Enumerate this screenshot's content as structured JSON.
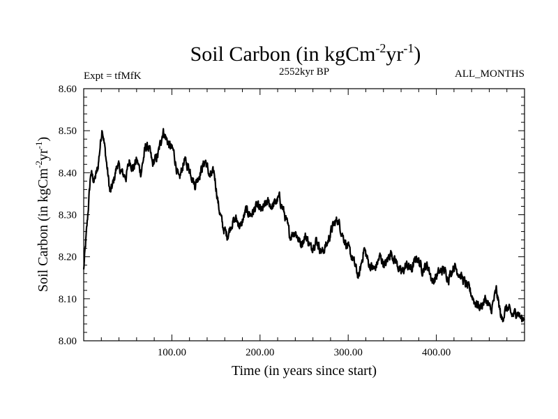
{
  "chart_data": {
    "type": "line",
    "title": "Soil Carbon (in kgCm",
    "title_exp1": "-2",
    "title_mid": "yr",
    "title_exp2": "-1",
    "title_end": ")",
    "subtitle_left": "Expt = tfMfK",
    "subtitle_center": "2552kyr BP",
    "subtitle_right": "ALL_MONTHS",
    "xlabel": "Time (in years since start)",
    "ylabel_parts": [
      "Soil Carbon (in kgCm",
      "-2",
      "yr",
      "-1",
      ")"
    ],
    "xlim": [
      0,
      500
    ],
    "ylim": [
      8.0,
      8.6
    ],
    "x_ticks": [
      100,
      200,
      300,
      400
    ],
    "x_tick_labels": [
      "100.00",
      "200.00",
      "300.00",
      "400.00"
    ],
    "y_ticks": [
      8.0,
      8.1,
      8.2,
      8.3,
      8.4,
      8.5,
      8.6
    ],
    "y_tick_labels": [
      "8.00",
      "8.10",
      "8.20",
      "8.30",
      "8.40",
      "8.50",
      "8.60"
    ],
    "noise_amplitude": 0.012,
    "series": [
      {
        "name": "Soil Carbon",
        "color": "#000000",
        "anchors": [
          [
            0,
            8.17
          ],
          [
            4,
            8.28
          ],
          [
            8,
            8.4
          ],
          [
            12,
            8.38
          ],
          [
            16,
            8.41
          ],
          [
            21,
            8.51
          ],
          [
            25,
            8.44
          ],
          [
            30,
            8.35
          ],
          [
            34,
            8.38
          ],
          [
            38,
            8.42
          ],
          [
            43,
            8.4
          ],
          [
            48,
            8.39
          ],
          [
            52,
            8.43
          ],
          [
            56,
            8.41
          ],
          [
            60,
            8.43
          ],
          [
            65,
            8.4
          ],
          [
            70,
            8.46
          ],
          [
            74,
            8.46
          ],
          [
            78,
            8.42
          ],
          [
            84,
            8.44
          ],
          [
            90,
            8.5
          ],
          [
            96,
            8.47
          ],
          [
            102,
            8.45
          ],
          [
            108,
            8.38
          ],
          [
            114,
            8.43
          ],
          [
            120,
            8.41
          ],
          [
            126,
            8.37
          ],
          [
            132,
            8.4
          ],
          [
            138,
            8.43
          ],
          [
            143,
            8.39
          ],
          [
            148,
            8.4
          ],
          [
            153,
            8.32
          ],
          [
            158,
            8.27
          ],
          [
            163,
            8.25
          ],
          [
            168,
            8.28
          ],
          [
            173,
            8.29
          ],
          [
            178,
            8.27
          ],
          [
            184,
            8.31
          ],
          [
            190,
            8.3
          ],
          [
            196,
            8.32
          ],
          [
            202,
            8.31
          ],
          [
            208,
            8.33
          ],
          [
            214,
            8.32
          ],
          [
            222,
            8.34
          ],
          [
            228,
            8.3
          ],
          [
            234,
            8.25
          ],
          [
            240,
            8.26
          ],
          [
            246,
            8.23
          ],
          [
            252,
            8.25
          ],
          [
            258,
            8.22
          ],
          [
            264,
            8.24
          ],
          [
            270,
            8.21
          ],
          [
            276,
            8.23
          ],
          [
            282,
            8.27
          ],
          [
            288,
            8.29
          ],
          [
            294,
            8.25
          ],
          [
            300,
            8.22
          ],
          [
            306,
            8.19
          ],
          [
            312,
            8.15
          ],
          [
            318,
            8.22
          ],
          [
            324,
            8.18
          ],
          [
            330,
            8.17
          ],
          [
            336,
            8.2
          ],
          [
            342,
            8.18
          ],
          [
            348,
            8.21
          ],
          [
            354,
            8.19
          ],
          [
            360,
            8.16
          ],
          [
            366,
            8.18
          ],
          [
            372,
            8.17
          ],
          [
            378,
            8.2
          ],
          [
            384,
            8.17
          ],
          [
            390,
            8.18
          ],
          [
            396,
            8.14
          ],
          [
            402,
            8.16
          ],
          [
            408,
            8.17
          ],
          [
            414,
            8.15
          ],
          [
            420,
            8.18
          ],
          [
            426,
            8.16
          ],
          [
            432,
            8.14
          ],
          [
            438,
            8.12
          ],
          [
            444,
            8.09
          ],
          [
            450,
            8.08
          ],
          [
            456,
            8.1
          ],
          [
            462,
            8.07
          ],
          [
            468,
            8.12
          ],
          [
            474,
            8.05
          ],
          [
            480,
            8.08
          ],
          [
            486,
            8.06
          ],
          [
            492,
            8.07
          ],
          [
            497,
            8.05
          ],
          [
            500,
            8.06
          ]
        ]
      }
    ]
  }
}
